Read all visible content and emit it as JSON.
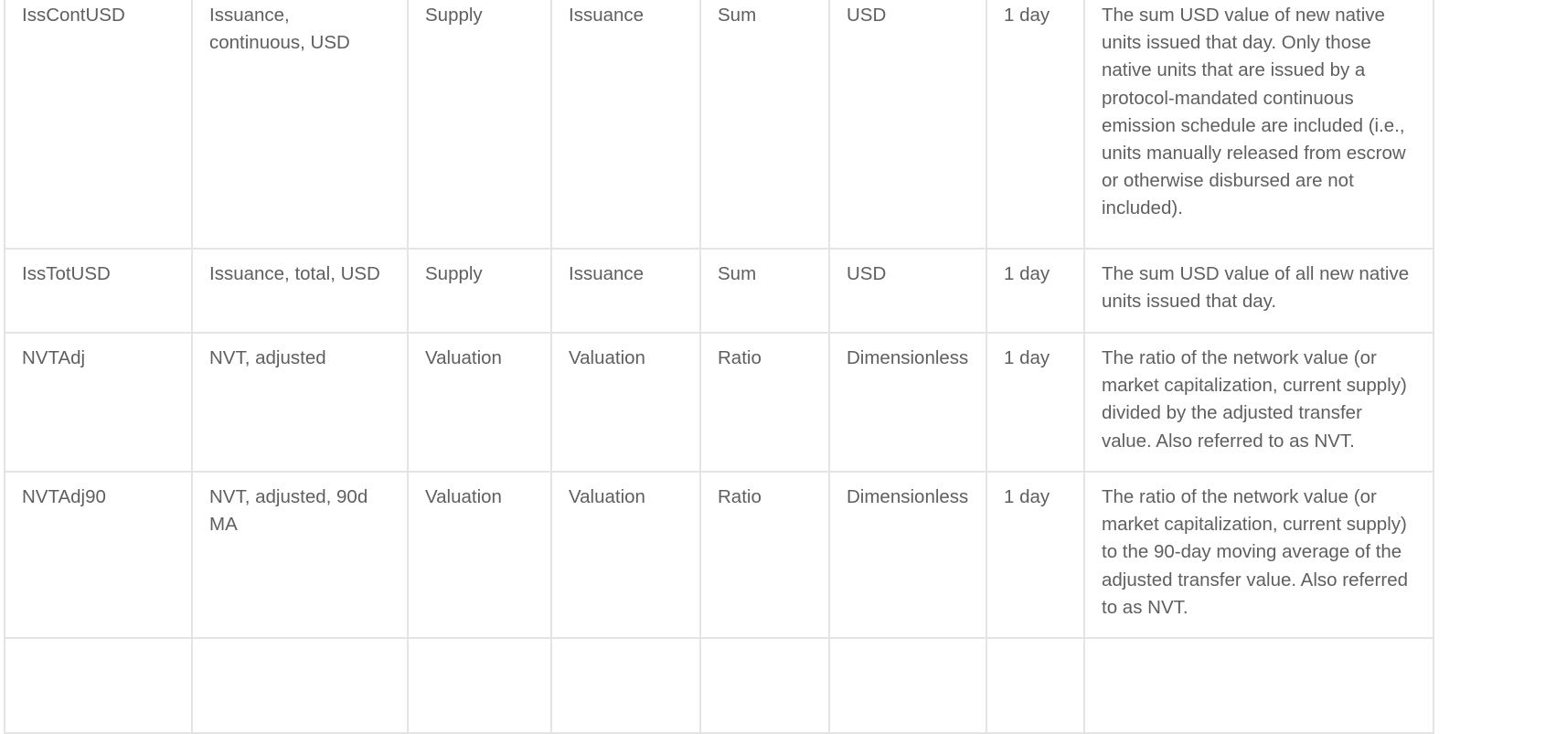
{
  "table": {
    "rows": [
      {
        "metric_id": "IssContUSD",
        "name": "Issuance, continuous, USD",
        "category": "Supply",
        "subcategory": "Issuance",
        "type": "Sum",
        "unit": "USD",
        "interval": "1 day",
        "description": "The sum USD value of new native units issued that day. Only those native units that are issued by a protocol-mandated continuous emission schedule are included (i.e., units manually released from escrow or otherwise disbursed are not included)."
      },
      {
        "metric_id": "IssTotUSD",
        "name": "Issuance, total, USD",
        "category": "Supply",
        "subcategory": "Issuance",
        "type": "Sum",
        "unit": "USD",
        "interval": "1 day",
        "description": "The sum USD value of all new native units issued that day."
      },
      {
        "metric_id": "NVTAdj",
        "name": "NVT, adjusted",
        "category": "Valuation",
        "subcategory": "Valuation",
        "type": "Ratio",
        "unit": "Dimensionless",
        "interval": "1 day",
        "description": "The ratio of the network value (or market capitalization, current supply) divided by the adjusted transfer value. Also referred to as NVT."
      },
      {
        "metric_id": "NVTAdj90",
        "name": "NVT, adjusted, 90d MA",
        "category": "Valuation",
        "subcategory": "Valuation",
        "type": "Ratio",
        "unit": "Dimensionless",
        "interval": "1 day",
        "description": "The ratio of the network value (or market capitalization, current supply) to the 90-day moving average of the adjusted transfer value. Also referred to as NVT."
      }
    ]
  }
}
